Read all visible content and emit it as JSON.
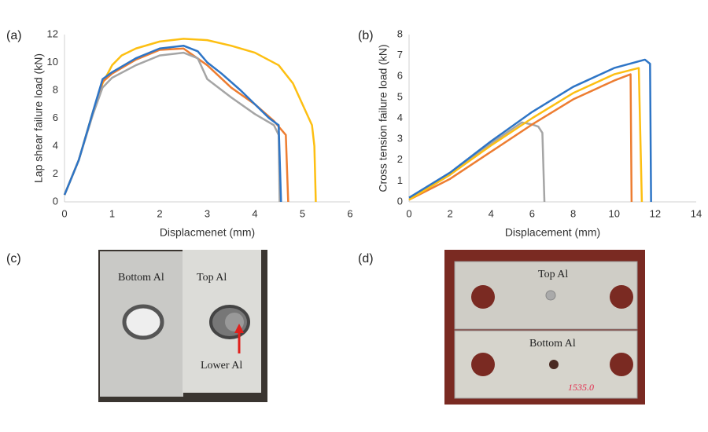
{
  "panels": [
    "(a)",
    "(b)",
    "(c)",
    "(d)"
  ],
  "chart_data": [
    {
      "type": "line",
      "x_label": "Displacmenet (mm)",
      "y_label": "Lap shear failure load (kN)",
      "xlim": [
        0,
        6
      ],
      "xticks": [
        0,
        1,
        2,
        3,
        4,
        5,
        6
      ],
      "ylim": [
        0,
        12
      ],
      "yticks": [
        0,
        2,
        4,
        6,
        8,
        10,
        12
      ],
      "grid": false,
      "series": [
        {
          "color": "#fdbf12",
          "x": [
            0,
            0.3,
            0.6,
            0.8,
            1,
            1.2,
            1.5,
            2,
            2.5,
            3,
            3.5,
            4,
            4.5,
            4.8,
            5,
            5.2,
            5.25,
            5.28
          ],
          "values": [
            0.5,
            3,
            6.5,
            8.5,
            9.8,
            10.5,
            11,
            11.5,
            11.7,
            11.6,
            11.2,
            10.7,
            9.8,
            8.5,
            7,
            5.5,
            4,
            0
          ]
        },
        {
          "color": "#ed7d31",
          "x": [
            0,
            0.3,
            0.6,
            0.8,
            1,
            1.5,
            2,
            2.5,
            3,
            3.5,
            4,
            4.4,
            4.65,
            4.7
          ],
          "values": [
            0.5,
            3,
            6.4,
            8.6,
            9.2,
            10.2,
            10.9,
            11,
            9.8,
            8.2,
            7,
            5.8,
            4.8,
            0
          ]
        },
        {
          "color": "#a5a5a5",
          "x": [
            0,
            0.3,
            0.6,
            0.8,
            1,
            1.5,
            2,
            2.5,
            2.8,
            3,
            3.5,
            4,
            4.4,
            4.5,
            4.52
          ],
          "values": [
            0.5,
            3,
            6.3,
            8.2,
            8.9,
            9.8,
            10.5,
            10.7,
            10.3,
            8.8,
            7.5,
            6.3,
            5.5,
            4.8,
            0
          ]
        },
        {
          "color": "#2e75c6",
          "x": [
            0,
            0.3,
            0.6,
            0.8,
            1,
            1.5,
            2,
            2.5,
            2.8,
            3,
            3.3,
            3.7,
            4,
            4.3,
            4.5,
            4.55
          ],
          "values": [
            0.5,
            3,
            6.5,
            8.8,
            9.3,
            10.3,
            11,
            11.2,
            10.8,
            10,
            9.2,
            8,
            7,
            6,
            5.5,
            0
          ]
        }
      ]
    },
    {
      "type": "line",
      "x_label": "Displacement (mm)",
      "y_label": "Cross tension failure load (kN)",
      "xlim": [
        0,
        14
      ],
      "xticks": [
        0,
        2,
        4,
        6,
        8,
        10,
        12,
        14
      ],
      "ylim": [
        0,
        8
      ],
      "yticks": [
        0,
        1,
        2,
        3,
        4,
        5,
        6,
        7,
        8
      ],
      "grid": false,
      "series": [
        {
          "color": "#a5a5a5",
          "x": [
            0,
            2,
            4,
            5.5,
            6,
            6.3,
            6.5,
            6.6
          ],
          "values": [
            0.1,
            1.3,
            2.8,
            3.8,
            3.7,
            3.6,
            3.3,
            0
          ]
        },
        {
          "color": "#ed7d31",
          "x": [
            0,
            2,
            4,
            6,
            8,
            10,
            10.8,
            10.85
          ],
          "values": [
            0.1,
            1.1,
            2.4,
            3.7,
            4.9,
            5.8,
            6.1,
            0
          ]
        },
        {
          "color": "#fdbf12",
          "x": [
            0,
            2,
            4,
            6,
            8,
            10,
            11.2,
            11.35
          ],
          "values": [
            0.1,
            1.3,
            2.7,
            4,
            5.2,
            6.1,
            6.4,
            0
          ]
        },
        {
          "color": "#2e75c6",
          "x": [
            0,
            0.5,
            2,
            4,
            6,
            8,
            10,
            11.5,
            11.75,
            11.8
          ],
          "values": [
            0.2,
            0.5,
            1.4,
            2.9,
            4.3,
            5.5,
            6.4,
            6.8,
            6.6,
            0
          ]
        }
      ]
    }
  ],
  "photo_c": {
    "labels": [
      "Bottom Al",
      "Top Al",
      "Lower Al"
    ]
  },
  "photo_d": {
    "labels": [
      "Top Al",
      "Bottom Al",
      "1535.0"
    ]
  }
}
